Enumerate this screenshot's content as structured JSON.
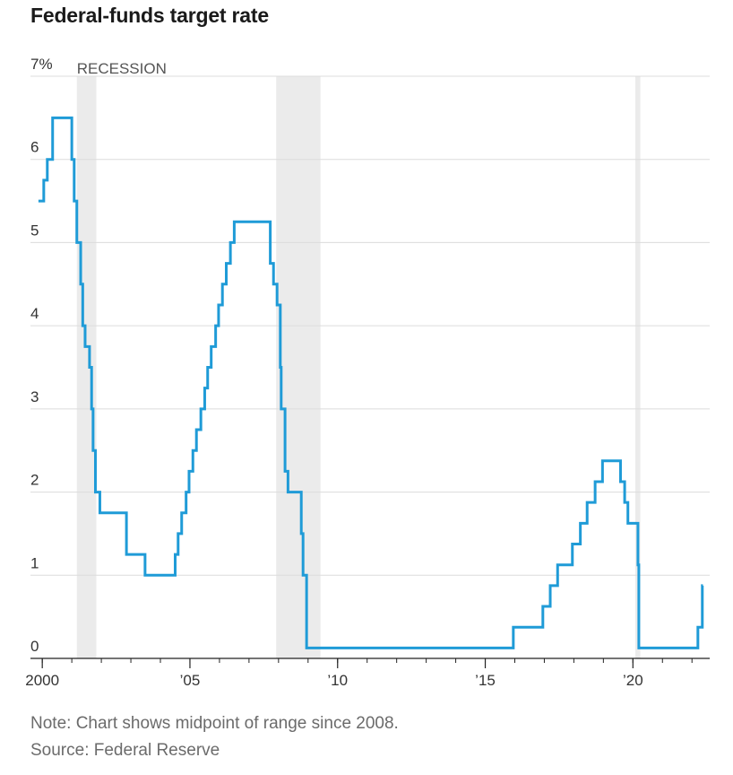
{
  "chart_data": {
    "type": "line",
    "title": "Federal-funds target rate",
    "note": "Note: Chart shows midpoint of range since 2008.",
    "source": "Source: Federal Reserve",
    "recession_label": "RECESSION",
    "xlim": [
      1999.6,
      2022.6
    ],
    "ylim": [
      0,
      7
    ],
    "y_ticks": [
      0,
      1,
      2,
      3,
      4,
      5,
      6,
      7
    ],
    "y_tick_labels": [
      "0",
      "1",
      "2",
      "3",
      "4",
      "5",
      "6",
      "7%"
    ],
    "x_ticks": [
      2000,
      2005,
      2010,
      2015,
      2020
    ],
    "x_tick_labels": [
      "2000",
      "’05",
      "’10",
      "’15",
      "’20"
    ],
    "grid": true,
    "series_color": "#1f9bd7",
    "recession_color": "#ebebeb",
    "recessions": [
      [
        2001.17,
        2001.83
      ],
      [
        2007.92,
        2009.42
      ],
      [
        2020.08,
        2020.25
      ]
    ],
    "series": [
      {
        "step": "post",
        "points": [
          [
            1999.87,
            5.5
          ],
          [
            2000.05,
            5.75
          ],
          [
            2000.17,
            6.0
          ],
          [
            2000.35,
            6.5
          ],
          [
            2001.0,
            6.0
          ],
          [
            2001.08,
            5.5
          ],
          [
            2001.17,
            5.0
          ],
          [
            2001.3,
            4.5
          ],
          [
            2001.37,
            4.0
          ],
          [
            2001.45,
            3.75
          ],
          [
            2001.6,
            3.5
          ],
          [
            2001.67,
            3.0
          ],
          [
            2001.72,
            2.5
          ],
          [
            2001.8,
            2.0
          ],
          [
            2001.95,
            1.75
          ],
          [
            2002.85,
            1.25
          ],
          [
            2003.48,
            1.0
          ],
          [
            2004.5,
            1.25
          ],
          [
            2004.6,
            1.5
          ],
          [
            2004.72,
            1.75
          ],
          [
            2004.87,
            2.0
          ],
          [
            2004.97,
            2.25
          ],
          [
            2005.1,
            2.5
          ],
          [
            2005.22,
            2.75
          ],
          [
            2005.37,
            3.0
          ],
          [
            2005.5,
            3.25
          ],
          [
            2005.6,
            3.5
          ],
          [
            2005.72,
            3.75
          ],
          [
            2005.87,
            4.0
          ],
          [
            2005.97,
            4.25
          ],
          [
            2006.1,
            4.5
          ],
          [
            2006.23,
            4.75
          ],
          [
            2006.37,
            5.0
          ],
          [
            2006.5,
            5.25
          ],
          [
            2007.72,
            4.75
          ],
          [
            2007.83,
            4.5
          ],
          [
            2007.95,
            4.25
          ],
          [
            2008.06,
            3.5
          ],
          [
            2008.09,
            3.0
          ],
          [
            2008.22,
            2.25
          ],
          [
            2008.32,
            2.0
          ],
          [
            2008.77,
            1.5
          ],
          [
            2008.83,
            1.0
          ],
          [
            2008.95,
            0.125
          ],
          [
            2015.95,
            0.375
          ],
          [
            2016.95,
            0.625
          ],
          [
            2017.2,
            0.875
          ],
          [
            2017.45,
            1.125
          ],
          [
            2017.95,
            1.375
          ],
          [
            2018.22,
            1.625
          ],
          [
            2018.45,
            1.875
          ],
          [
            2018.72,
            2.125
          ],
          [
            2018.97,
            2.375
          ],
          [
            2019.58,
            2.125
          ],
          [
            2019.72,
            1.875
          ],
          [
            2019.83,
            1.625
          ],
          [
            2020.17,
            1.125
          ],
          [
            2020.2,
            0.125
          ],
          [
            2022.2,
            0.375
          ],
          [
            2022.35,
            0.875
          ],
          [
            2022.37,
            0.875
          ]
        ]
      }
    ]
  }
}
